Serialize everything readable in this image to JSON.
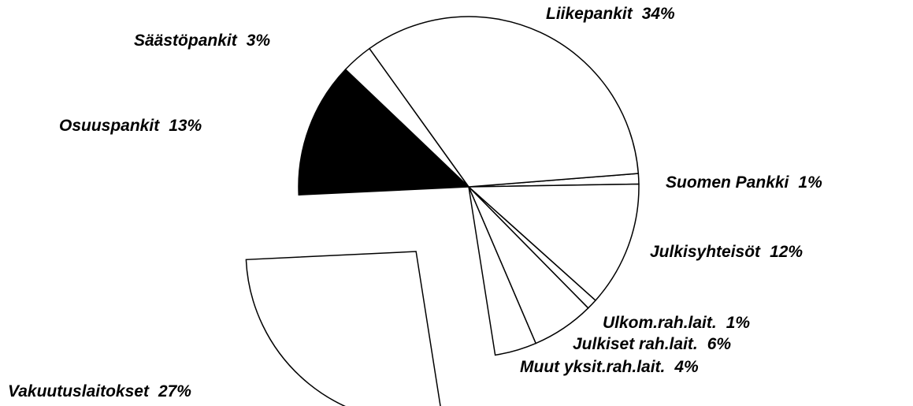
{
  "chart_data": {
    "type": "pie",
    "categories": [
      "Suomen Pankki",
      "Julkisyhteisöt",
      "Ulkom.rah.lait.",
      "Julkiset rah.lait.",
      "Muut yksit.rah.lait.",
      "Vakuutuslaitokset",
      "Osuuspankit",
      "Säästöpankit",
      "Liikepankit"
    ],
    "values": [
      1,
      12,
      1,
      6,
      4,
      27,
      13,
      3,
      34
    ],
    "value_labels": [
      "1%",
      "12%",
      "1%",
      "6%",
      "4%",
      "27%",
      "13%",
      "3%",
      "34%"
    ],
    "colors": [
      "#ffffff",
      "#ffffff",
      "#ffffff",
      "#ffffff",
      "#ffffff",
      "#ffffff",
      "#000000",
      "#ffffff",
      "#ffffff"
    ],
    "explode": [
      0,
      0,
      0,
      0,
      0,
      0.49,
      0,
      0,
      0
    ],
    "start_angle": -4.5,
    "direction": "clockwise"
  }
}
